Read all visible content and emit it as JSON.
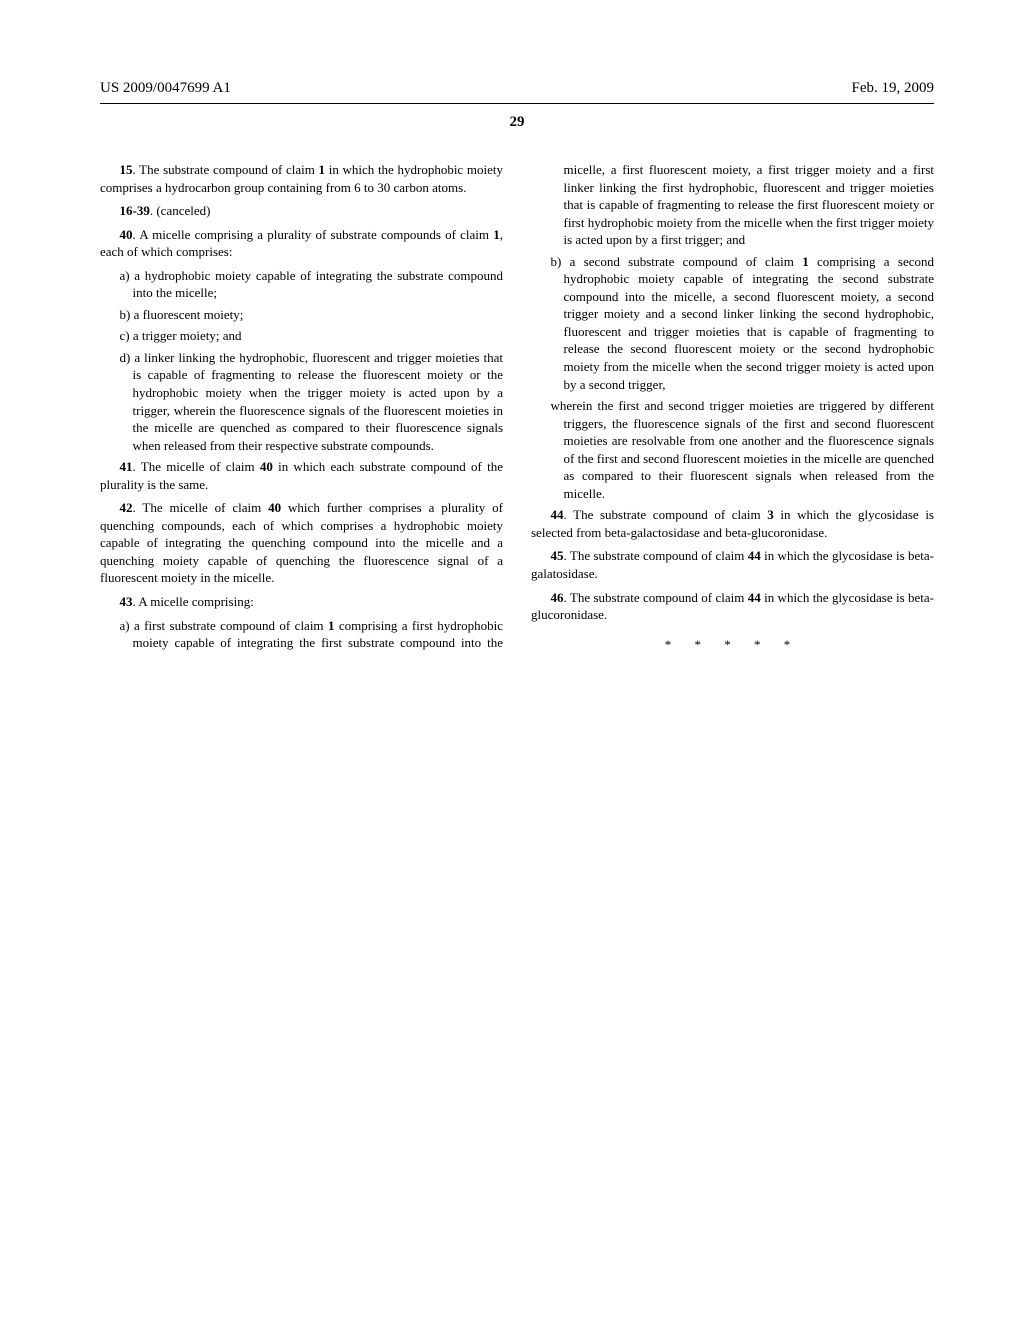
{
  "header": {
    "pub_number": "US 2009/0047699 A1",
    "date": "Feb. 19, 2009"
  },
  "page_number": "29",
  "end_marker": "*   *   *   *   *",
  "claims": {
    "c15": {
      "num": "15",
      "text_before": ". The substrate compound of claim ",
      "ref": "1",
      "text_after": " in which the hydrophobic moiety comprises a hydrocarbon group containing from 6 to 30 carbon atoms."
    },
    "c16_39": {
      "num": "16-39",
      "text": ". (canceled)"
    },
    "c40": {
      "num": "40",
      "text_before": ". A micelle comprising a plurality of substrate compounds of claim ",
      "ref": "1",
      "text_after": ", each of which comprises:",
      "a": "a) a hydrophobic moiety capable of integrating the substrate compound into the micelle;",
      "b": "b) a fluorescent moiety;",
      "c": "c) a trigger moiety; and",
      "d": "d) a linker linking the hydrophobic, fluorescent and trigger moieties that is capable of fragmenting to release the fluorescent moiety or the hydrophobic moiety when the trigger moiety is acted upon by a trigger, wherein the fluorescence signals of the fluorescent moieties in the micelle are quenched as compared to their fluorescence signals when released from their respective substrate compounds."
    },
    "c41": {
      "num": "41",
      "text_before": ". The micelle of claim ",
      "ref": "40",
      "text_after": " in which each substrate compound of the plurality is the same."
    },
    "c42": {
      "num": "42",
      "text_before": ". The micelle of claim ",
      "ref": "40",
      "text_after": " which further comprises a plurality of quenching compounds, each of which comprises a hydrophobic moiety capable of integrating the quenching compound into the micelle and a quenching moiety capable of quenching the fluorescence signal of a fluorescent moiety in the micelle."
    },
    "c43": {
      "num": "43",
      "lead": ". A micelle comprising:",
      "a_before": "a) a first substrate compound of claim ",
      "a_ref": "1",
      "a_after": " comprising a first hydrophobic moiety capable of integrating the first substrate compound into the micelle, a first fluorescent moiety, a first trigger moiety and a first linker linking the first hydrophobic, fluorescent and trigger moieties that is capable of fragmenting to release the first fluorescent moiety or first hydrophobic moiety from the micelle when the first trigger moiety is acted upon by a first trigger; and",
      "b_before": "b) a second substrate compound of claim ",
      "b_ref": "1",
      "b_after": " comprising a second hydrophobic moiety capable of integrating the second substrate compound into the micelle, a second fluorescent moiety, a second trigger moiety and a second linker linking the second hydrophobic, fluorescent and trigger moieties that is capable of fragmenting to release the second fluorescent moiety or the second hydrophobic moiety from the micelle when the second trigger moiety is acted upon by a second trigger,",
      "wherein": "wherein the first and second trigger moieties are triggered by different triggers, the fluorescence signals of the first and second fluorescent moieties are resolvable from one another and the fluorescence signals of the first and second fluorescent moieties in the micelle are quenched as compared to their fluorescent signals when released from the micelle."
    },
    "c44": {
      "num": "44",
      "text_before": ". The substrate compound of claim ",
      "ref": "3",
      "text_after": " in which the glycosidase is selected from beta-galactosidase and beta-glucoronidase."
    },
    "c45": {
      "num": "45",
      "text_before": ". The substrate compound of claim ",
      "ref": "44",
      "text_after": " in which the glycosidase is beta-galatosidase."
    },
    "c46": {
      "num": "46",
      "text_before": ". The substrate compound of claim ",
      "ref": "44",
      "text_after": " in which the glycosidase is beta-glucoronidase."
    }
  }
}
